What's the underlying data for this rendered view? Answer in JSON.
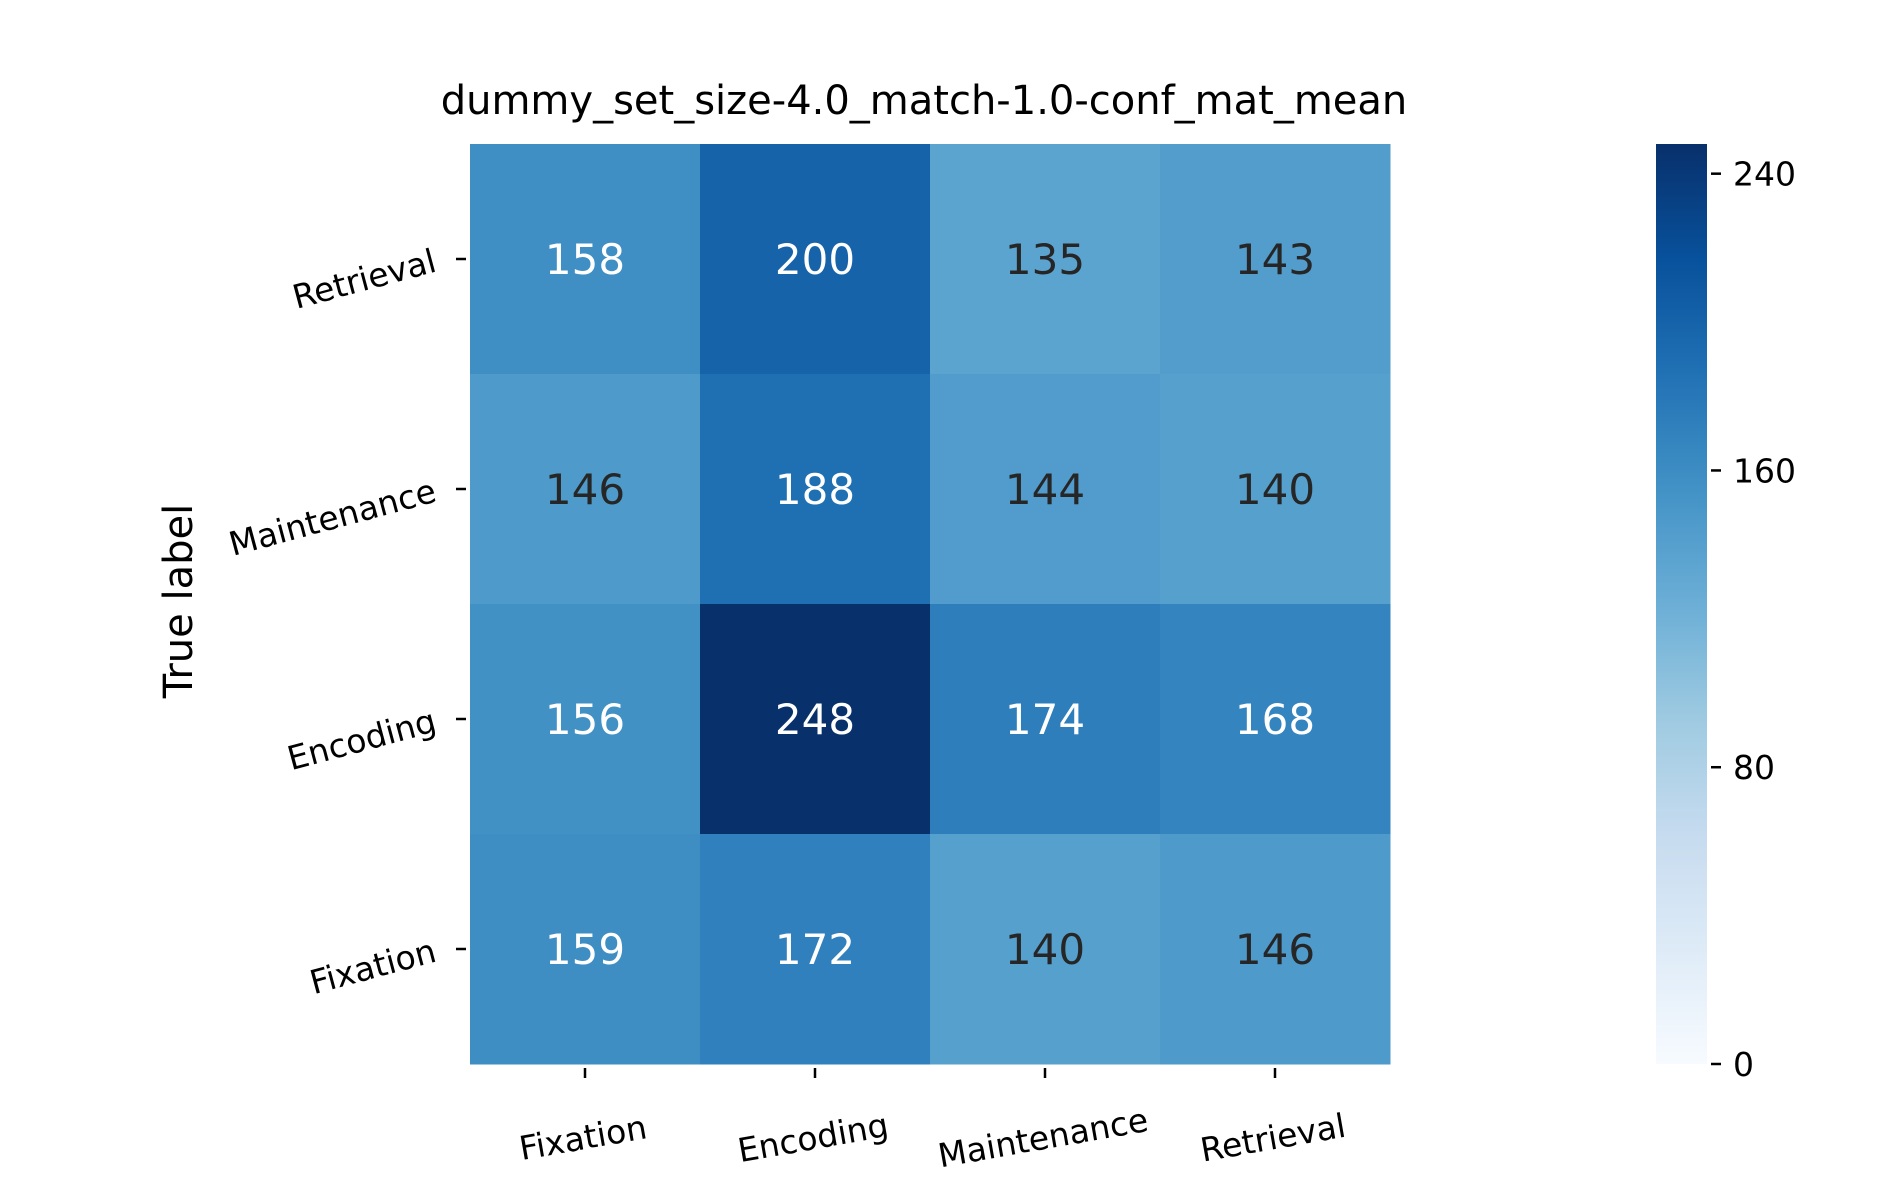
{
  "chart_data": {
    "type": "heatmap",
    "title": "dummy_set_size-4.0_match-1.0-conf_mat_mean",
    "xlabel": "",
    "ylabel": "True label",
    "x_categories": [
      "Fixation",
      "Encoding",
      "Maintenance",
      "Retrieval"
    ],
    "y_categories": [
      "Retrieval",
      "Maintenance",
      "Encoding",
      "Fixation"
    ],
    "values": [
      [
        158,
        200,
        135,
        143
      ],
      [
        146,
        188,
        144,
        140
      ],
      [
        156,
        248,
        174,
        168
      ],
      [
        159,
        172,
        140,
        146
      ]
    ],
    "colorbar": {
      "range": [
        0,
        248
      ],
      "ticks": [
        0,
        80,
        160,
        240
      ],
      "colormap": "Blues",
      "min_color": "#f7fbff",
      "max_color": "#08306b"
    },
    "color_scale_domain": [
      0,
      248
    ]
  }
}
